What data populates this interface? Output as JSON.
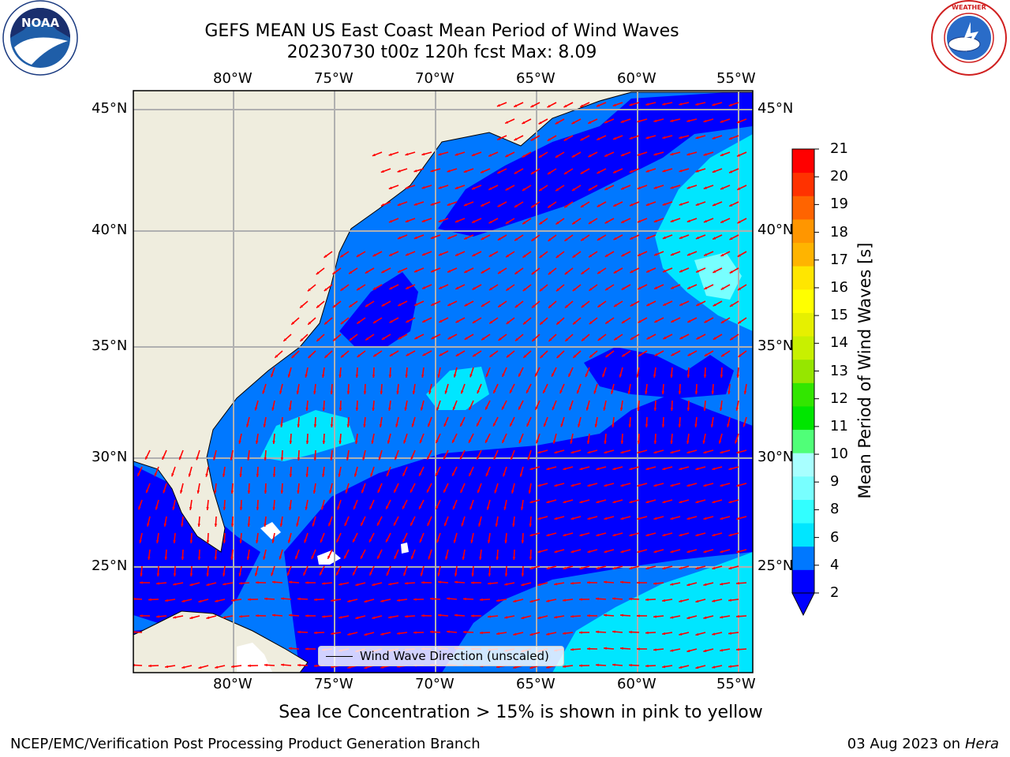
{
  "header": {
    "title_line1": "GEFS MEAN US East Coast Mean Period of Wind Waves",
    "title_line2": "20230730 t00z 120h fcst   Max: 8.09"
  },
  "logos": {
    "left": {
      "icon": "noaa-logo-icon",
      "text": "NOAA"
    },
    "right": {
      "icon": "national-weather-service-logo-icon",
      "text": "NATIONAL WEATHER SERVICE"
    }
  },
  "map": {
    "projection": "lat-lon",
    "lon_range": [
      -85,
      -54.5
    ],
    "lat_range": [
      20.5,
      46
    ],
    "lon_ticks": [
      "80°W",
      "75°W",
      "70°W",
      "65°W",
      "60°W",
      "55°W"
    ],
    "lat_ticks": [
      "45°N",
      "40°N",
      "35°N",
      "30°N",
      "25°N"
    ],
    "land_color": "#efedde",
    "grid_color": "#b0b0b0",
    "arrow_color": "#ff0000",
    "max_value": 8.09
  },
  "legend": {
    "label": "Wind Wave Direction (unscaled)"
  },
  "colorbar": {
    "label": "Mean Period of Wind Waves [s]",
    "ticks": [
      "21",
      "20",
      "19",
      "18",
      "17",
      "16",
      "15",
      "14",
      "13",
      "12",
      "11",
      "10",
      "9",
      "8",
      "6",
      "4",
      "2"
    ],
    "colors": [
      "#0000ff",
      "#0078ff",
      "#00e6ff",
      "#32ffff",
      "#78ffff",
      "#a8ffff",
      "#50ff78",
      "#00e600",
      "#32e600",
      "#96e600",
      "#c8f000",
      "#e6f000",
      "#ffff00",
      "#ffe600",
      "#ffb400",
      "#ff9600",
      "#ff6400",
      "#ff3200",
      "#ff0000"
    ]
  },
  "footer": {
    "sea_ice_note": "Sea Ice Concentration > 15% is shown in pink to yellow",
    "credit": "NCEP/EMC/Verification Post Processing Product Generation Branch",
    "date": "03 Aug 2023 on",
    "machine": "Hera"
  }
}
